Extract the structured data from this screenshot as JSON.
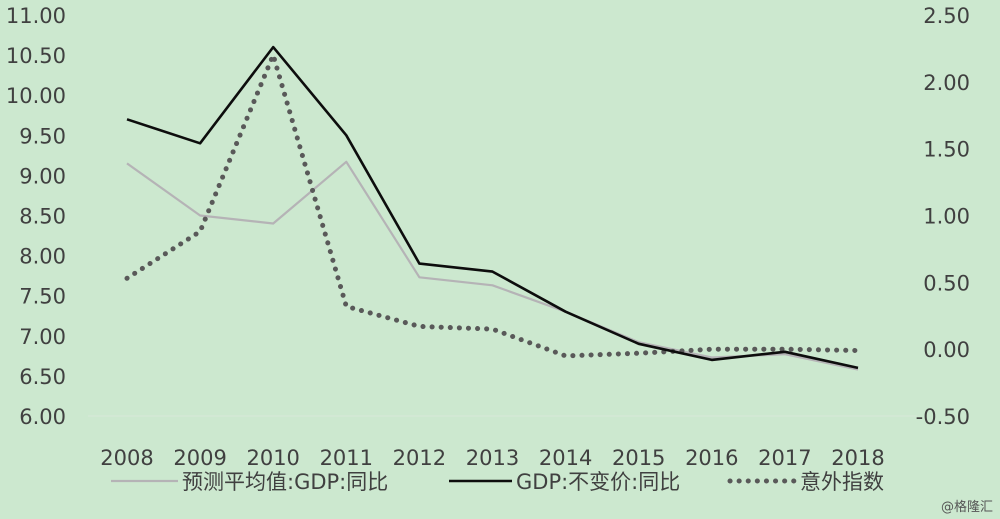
{
  "chart_data": {
    "type": "line",
    "title": "",
    "categories": [
      "2008",
      "2009",
      "2010",
      "2011",
      "2012",
      "2013",
      "2014",
      "2015",
      "2016",
      "2017",
      "2018"
    ],
    "y_left": {
      "min": 6.0,
      "max": 11.0,
      "ticks": [
        "6.00",
        "6.50",
        "7.00",
        "7.50",
        "8.00",
        "8.50",
        "9.00",
        "9.50",
        "10.00",
        "10.50",
        "11.00"
      ]
    },
    "y_right": {
      "min": -0.5,
      "max": 2.5,
      "ticks": [
        "-0.50",
        "0.00",
        "0.50",
        "1.00",
        "1.50",
        "2.00",
        "2.50"
      ]
    },
    "series": [
      {
        "name": "预测平均值:GDP:同比",
        "axis": "left",
        "style": "solid",
        "color": "#b5b3b6",
        "values": [
          9.15,
          8.5,
          8.4,
          9.17,
          7.73,
          7.63,
          7.3,
          6.92,
          6.73,
          6.77,
          6.58
        ]
      },
      {
        "name": "GDP:不变价:同比",
        "axis": "left",
        "style": "solid",
        "color": "#0d0d0d",
        "values": [
          9.7,
          9.4,
          10.6,
          9.5,
          7.9,
          7.8,
          7.3,
          6.9,
          6.7,
          6.8,
          6.6
        ]
      },
      {
        "name": "意外指数",
        "axis": "right",
        "style": "dotted",
        "color": "#595959",
        "values": [
          0.53,
          0.88,
          2.2,
          0.32,
          0.17,
          0.15,
          -0.05,
          -0.03,
          0.0,
          0.0,
          -0.01
        ]
      }
    ],
    "legend_position": "bottom",
    "grid": false
  },
  "watermark": "@格隆汇"
}
